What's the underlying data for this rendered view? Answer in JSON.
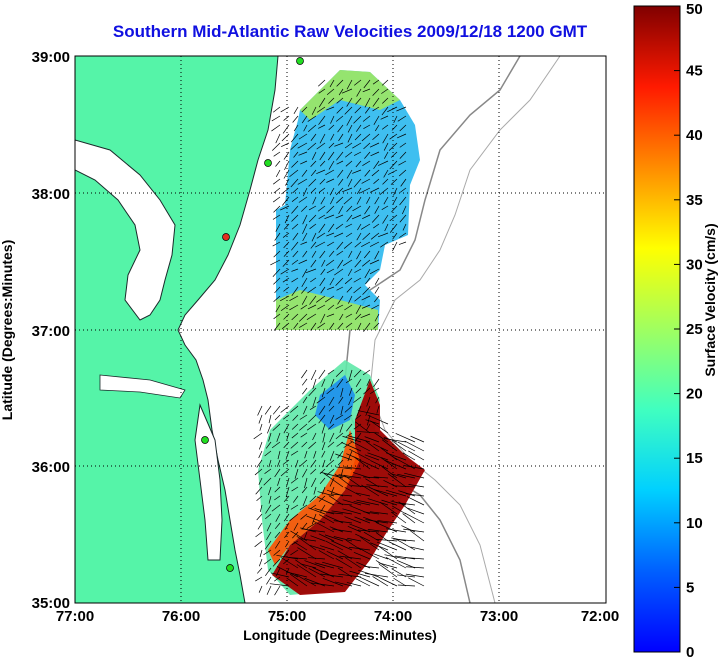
{
  "title": "Southern Mid-Atlantic Raw Velocities 2009/12/18 1200 GMT",
  "xlabel": "Longitude (Degrees:Minutes)",
  "ylabel": "Latitude (Degrees:Minutes)",
  "x_ticks": [
    "77:00",
    "76:00",
    "75:00",
    "74:00",
    "73:00",
    "72:00"
  ],
  "y_ticks": [
    "39:00",
    "38:00",
    "37:00",
    "36:00",
    "35:00"
  ],
  "colorbar": {
    "label": "Surface Velocity (cm/s)",
    "ticks": [
      "0",
      "5",
      "10",
      "15",
      "20",
      "25",
      "30",
      "35",
      "40",
      "45",
      "50"
    ],
    "range": [
      0,
      50
    ],
    "colormap": "jet"
  },
  "colors": {
    "land": "#55f4a8",
    "title": "#1010e0",
    "station": "#22dd22",
    "station_alt": "#e03020"
  },
  "map": {
    "lon_range": [
      -77,
      -72
    ],
    "lat_range": [
      35,
      39
    ],
    "grid": true,
    "stations": [
      "green",
      "green",
      "red",
      "green",
      "green"
    ]
  }
}
